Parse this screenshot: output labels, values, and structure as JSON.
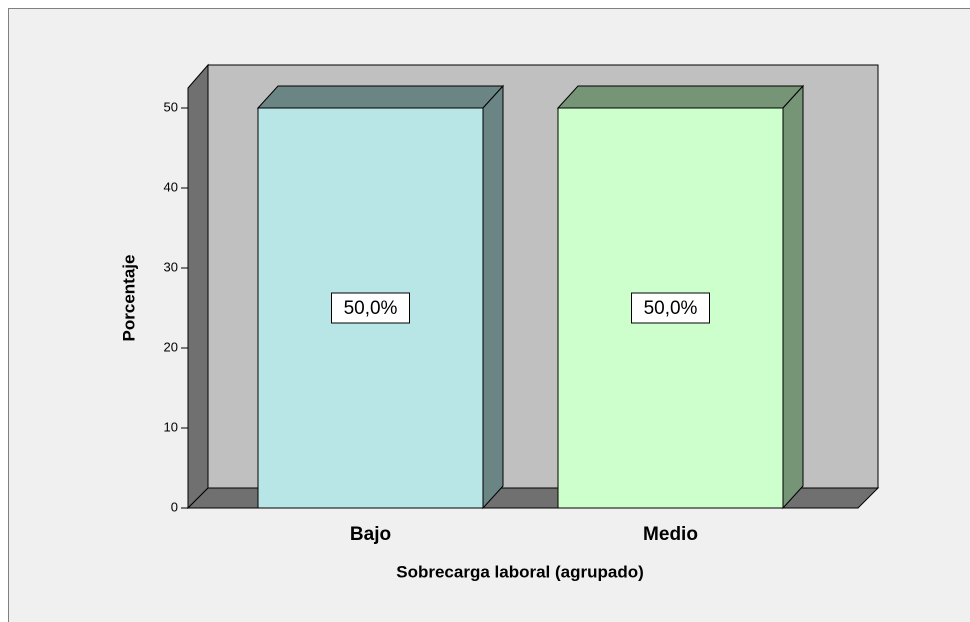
{
  "chart_data": {
    "type": "bar",
    "categories": [
      "Bajo",
      "Medio"
    ],
    "values": [
      50,
      50
    ],
    "value_labels": [
      "50,0%",
      "50,0%"
    ],
    "colors": [
      "#b8e6e6",
      "#ccffcc"
    ],
    "xlabel": "Sobrecarga laboral (agrupado)",
    "ylabel": "Porcentaje",
    "ylim": [
      0,
      50
    ],
    "yticks": [
      0,
      10,
      20,
      30,
      40,
      50
    ]
  }
}
